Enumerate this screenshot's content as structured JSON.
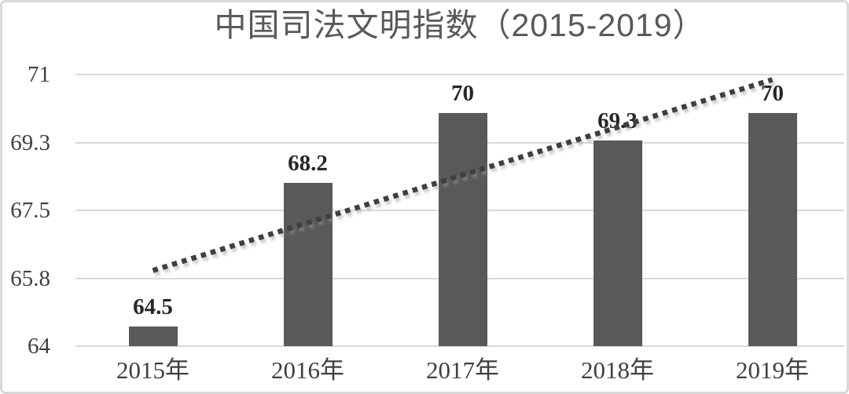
{
  "chart_data": {
    "type": "bar",
    "title": "中国司法文明指数（2015-2019）",
    "categories": [
      "2015年",
      "2016年",
      "2017年",
      "2018年",
      "2019年"
    ],
    "values": [
      64.5,
      68.2,
      70,
      69.3,
      70
    ],
    "value_labels": [
      "64.5",
      "68.2",
      "70",
      "69.3",
      "70"
    ],
    "xlabel": "",
    "ylabel": "",
    "ylim": [
      64,
      71
    ],
    "ytick_labels_top_to_bottom": [
      "71",
      "69.3",
      "67.5",
      "65.8",
      "64"
    ],
    "grid": true,
    "legend": false,
    "trendline": {
      "style": "dotted",
      "start": {
        "category_index": 0,
        "value": 65.95
      },
      "end": {
        "category_index": 4,
        "value": 70.87
      }
    },
    "colors": {
      "bar": "#595959",
      "gridline": "#d9d9d9",
      "trendline": "#3f3f3f",
      "trendline_shadow": "#9a9a9a",
      "title_text": "#595959",
      "tick_text": "#404040",
      "value_label_text": "#262626",
      "card_border": "#d9d9d9",
      "background": "#ffffff"
    }
  }
}
